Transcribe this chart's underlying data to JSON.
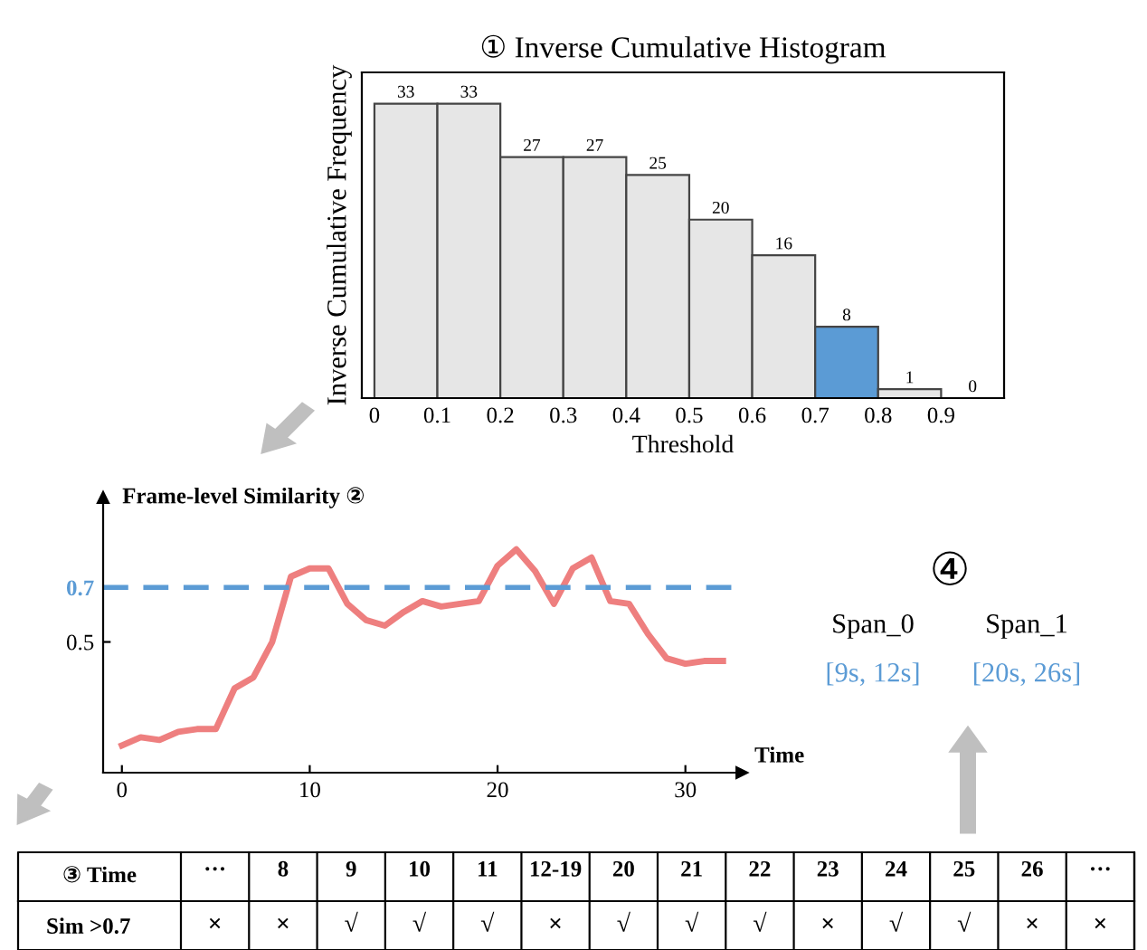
{
  "chart_data": [
    {
      "type": "bar",
      "title": "① Inverse Cumulative Histogram",
      "xlabel": "Threshold",
      "ylabel": "Inverse Cumulative Frequency",
      "x": [
        0.05,
        0.15,
        0.25,
        0.35,
        0.45,
        0.55,
        0.65,
        0.75,
        0.85,
        0.95
      ],
      "values": [
        33,
        33,
        27,
        27,
        25,
        20,
        16,
        8,
        1,
        0
      ],
      "colors": [
        "#e6e6e6",
        "#e6e6e6",
        "#e6e6e6",
        "#e6e6e6",
        "#e6e6e6",
        "#e6e6e6",
        "#e6e6e6",
        "#5b9bd5",
        "#e6e6e6",
        "#e6e6e6"
      ],
      "data_labels": true,
      "xlim": [
        -0.02,
        1.0
      ],
      "ylim": [
        0,
        36.5
      ],
      "xticks": [
        0,
        0.1,
        0.2,
        0.3,
        0.4,
        0.5,
        0.6,
        0.7,
        0.8,
        0.9
      ],
      "tick_labels": "x",
      "grid": false
    },
    {
      "type": "line",
      "title": "Frame-level Similarity ②",
      "xlabel": "Time",
      "x": [
        0,
        1,
        2,
        3,
        4,
        5,
        6,
        7,
        8,
        9,
        10,
        11,
        12,
        13,
        14,
        15,
        16,
        17,
        18,
        19,
        20,
        21,
        22,
        23,
        24,
        25,
        26,
        27,
        28,
        29,
        30,
        31,
        32
      ],
      "series": [
        {
          "color": "#ee7f7f",
          "values": [
            0.12,
            0.15,
            0.14,
            0.17,
            0.18,
            0.18,
            0.33,
            0.37,
            0.5,
            0.74,
            0.77,
            0.77,
            0.64,
            0.58,
            0.56,
            0.61,
            0.65,
            0.63,
            0.64,
            0.65,
            0.78,
            0.84,
            0.76,
            0.64,
            0.77,
            0.81,
            0.65,
            0.64,
            0.53,
            0.44,
            0.42,
            0.43,
            0.43
          ]
        }
      ],
      "ref_lines": [
        {
          "axis": "y",
          "value": 0.7,
          "color": "#5b9bd5",
          "line_style": "dashed"
        }
      ],
      "xlim": [
        -1,
        33
      ],
      "ylim": [
        0.02,
        1.03
      ],
      "xticks": [
        0,
        10,
        20,
        30
      ],
      "yticks": [
        0.5,
        0.7
      ],
      "grid": false,
      "line_style": "solid",
      "marker": "none"
    },
    {
      "type": "heatmap",
      "title": "③ Time",
      "categories": [
        "···",
        "8",
        "9",
        "10",
        "11",
        "12-19",
        "20",
        "21",
        "22",
        "23",
        "24",
        "25",
        "26",
        "···"
      ],
      "y_categories": [
        "Sim >0.7"
      ],
      "cells": [
        [
          null,
          null,
          null,
          null,
          null,
          null,
          null,
          null,
          null,
          null,
          null,
          null,
          null,
          null
        ]
      ],
      "cell_labels": [
        [
          "×",
          "×",
          "√",
          "√",
          "√",
          "×",
          "√",
          "√",
          "√",
          "×",
          "√",
          "√",
          "×",
          "×"
        ]
      ]
    },
    {
      "type": "other",
      "annotations": [
        "④",
        "Span_0",
        "Span_1",
        "[9s, 12s]",
        "[20s, 26s]"
      ],
      "colors": [
        "#000000",
        "#000000",
        "#000000",
        "#5b9bd5",
        "#5b9bd5"
      ]
    }
  ]
}
